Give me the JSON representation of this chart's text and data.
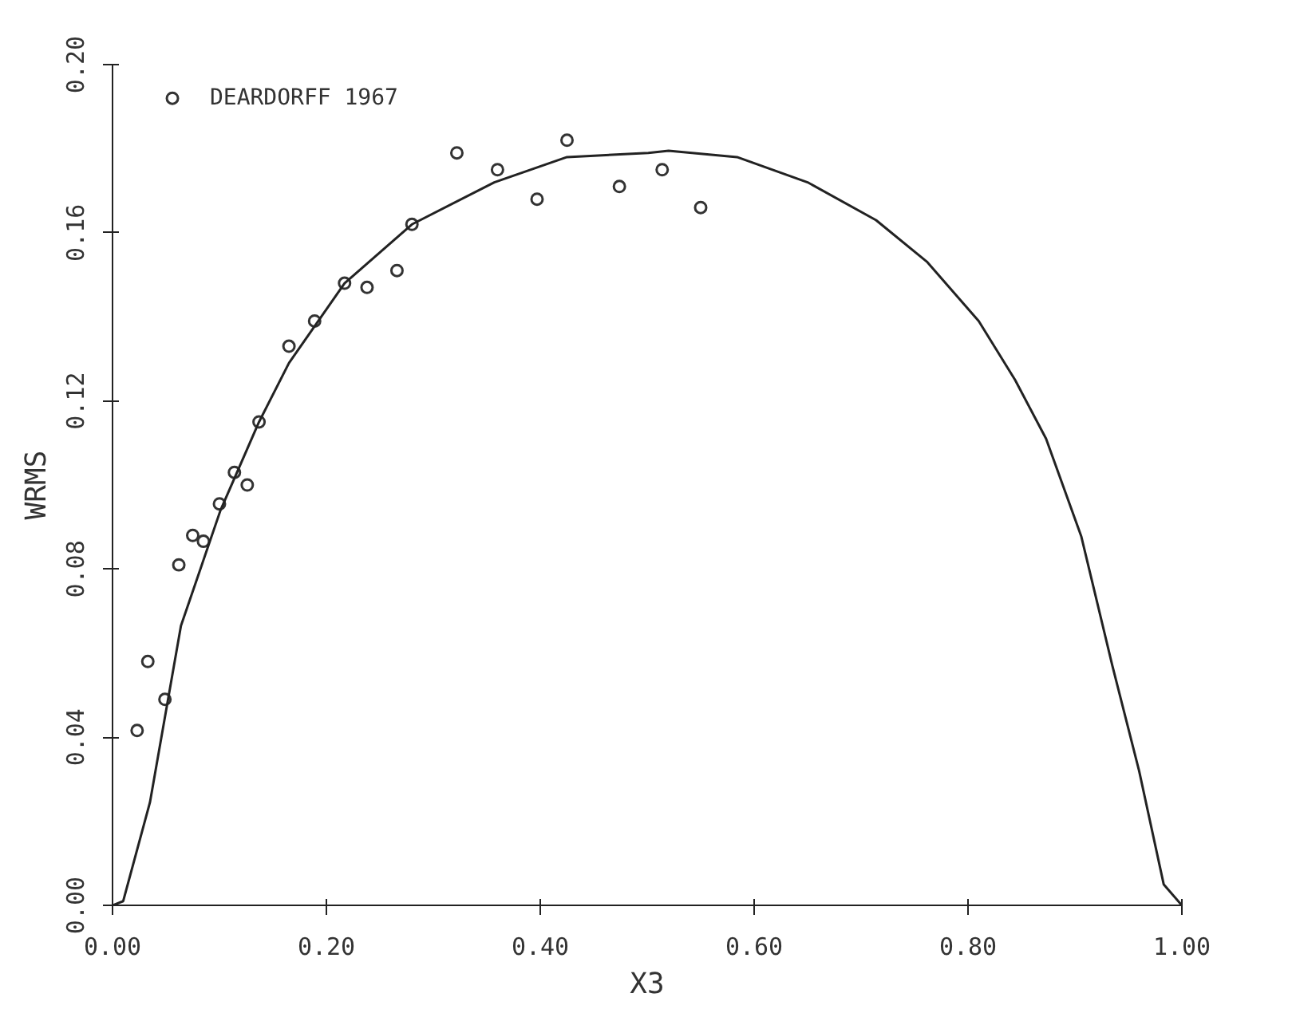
{
  "chart_data": {
    "type": "scatter",
    "xlabel": "X3",
    "ylabel": "WRMS",
    "xlim": [
      0,
      1
    ],
    "ylim": [
      0,
      0.2
    ],
    "xticks": [
      {
        "value": 0,
        "label": "0.00"
      },
      {
        "value": 0.2,
        "label": "0.20"
      },
      {
        "value": 0.4,
        "label": "0.40"
      },
      {
        "value": 0.6,
        "label": "0.60"
      },
      {
        "value": 0.8,
        "label": "0.80"
      },
      {
        "value": 1,
        "label": "1.00"
      }
    ],
    "yticks": [
      {
        "value": 0,
        "label": "0.00"
      },
      {
        "value": 0.04,
        "label": "0.04"
      },
      {
        "value": 0.08,
        "label": "0.08"
      },
      {
        "value": 0.12,
        "label": "0.12"
      },
      {
        "value": 0.16,
        "label": "0.16"
      },
      {
        "value": 0.2,
        "label": "0.20"
      }
    ],
    "grid": false,
    "legend": false,
    "marker": "circle",
    "series": [
      {
        "name": "DEARDORFF 1967",
        "color": "#333333",
        "x": [
          0.056,
          0.322,
          0.36,
          0.425,
          0.397,
          0.474,
          0.28,
          0.266,
          0.238,
          0.217,
          0.189,
          0.165,
          0.137,
          0.514,
          0.55,
          0.114,
          0.126,
          0.1,
          0.075,
          0.085,
          0.062,
          0.033,
          0.049,
          0.023
        ],
        "values": [
          0.192,
          0.179,
          0.175,
          0.182,
          0.168,
          0.171,
          0.162,
          0.151,
          0.147,
          0.148,
          0.139,
          0.133,
          0.115,
          0.175,
          0.166,
          0.103,
          0.1,
          0.0955,
          0.088,
          0.0866,
          0.081,
          0.058,
          0.049,
          0.0416
        ]
      },
      {
        "type": "line",
        "color": "#222222",
        "line_style": "solid",
        "marker": "none",
        "x": [
          0,
          0.01,
          0.035,
          0.064,
          0.101,
          0.137,
          0.165,
          0.217,
          0.28,
          0.357,
          0.425,
          0.501,
          0.52,
          0.584,
          0.65,
          0.714,
          0.762,
          0.81,
          0.844,
          0.873,
          0.906,
          0.935,
          0.96,
          0.983,
          1.0
        ],
        "values": [
          0,
          0.001,
          0.0245,
          0.0665,
          0.094,
          0.115,
          0.129,
          0.148,
          0.162,
          0.172,
          0.178,
          0.179,
          0.1795,
          0.178,
          0.172,
          0.163,
          0.153,
          0.139,
          0.125,
          0.111,
          0.0877,
          0.057,
          0.032,
          0.005,
          0
        ]
      }
    ]
  }
}
